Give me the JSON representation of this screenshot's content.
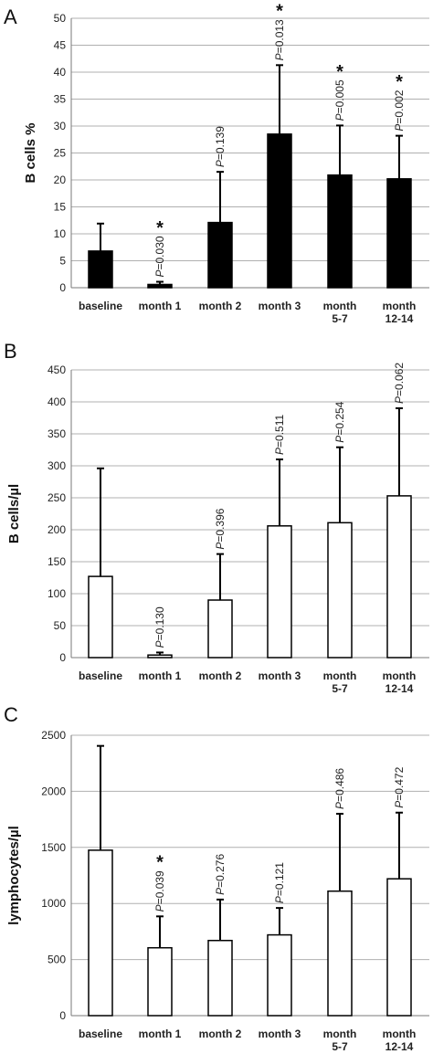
{
  "chart_data": [
    {
      "type": "bar",
      "panel_label": "A",
      "ylabel": "B cells %",
      "ylim": [
        0,
        50
      ],
      "yticks": [
        "0",
        "5",
        "10",
        "15",
        "20",
        "25",
        "30",
        "35",
        "40",
        "45",
        "50"
      ],
      "bar_fill": "#000000",
      "grid": true,
      "categories": [
        "baseline",
        "month 1",
        "month 2",
        "month 3",
        "month 5-7",
        "month 12-14"
      ],
      "category_lines": [
        [
          "baseline"
        ],
        [
          "month 1"
        ],
        [
          "month 2"
        ],
        [
          "month 3"
        ],
        [
          "month",
          "5-7"
        ],
        [
          "month",
          "12-14"
        ]
      ],
      "values": [
        6.8,
        0.6,
        12.1,
        28.5,
        20.9,
        20.2
      ],
      "error_upper": [
        11.9,
        1.1,
        21.5,
        41.3,
        30.1,
        28.2
      ],
      "p_values": [
        "",
        "=0.030",
        "=0.139",
        "=0.013",
        "=0.005",
        "=0.002"
      ],
      "significant": [
        false,
        true,
        false,
        true,
        true,
        true
      ]
    },
    {
      "type": "bar",
      "panel_label": "B",
      "ylabel": "B cells/µl",
      "ylim": [
        0,
        450
      ],
      "yticks": [
        "0",
        "50",
        "100",
        "150",
        "200",
        "250",
        "300",
        "350",
        "400",
        "450"
      ],
      "bar_fill": "#ffffff",
      "grid": true,
      "categories": [
        "baseline",
        "month 1",
        "month 2",
        "month 3",
        "month 5-7",
        "month 12-14"
      ],
      "category_lines": [
        [
          "baseline"
        ],
        [
          "month 1"
        ],
        [
          "month 2"
        ],
        [
          "month 3"
        ],
        [
          "month",
          "5-7"
        ],
        [
          "month",
          "12-14"
        ]
      ],
      "values": [
        127,
        4,
        90,
        206,
        211,
        253
      ],
      "error_upper": [
        296,
        8,
        162,
        310,
        329,
        390
      ],
      "p_values": [
        "",
        "=0.130",
        "=0.396",
        "=0.511",
        "=0.254",
        "=0.062"
      ],
      "significant": [
        false,
        false,
        false,
        false,
        false,
        false
      ]
    },
    {
      "type": "bar",
      "panel_label": "C",
      "ylabel": "lymphocytes/µl",
      "ylim": [
        0,
        2500
      ],
      "yticks": [
        "0",
        "500",
        "1000",
        "1500",
        "2000",
        "2500"
      ],
      "bar_fill": "#ffffff",
      "grid": true,
      "categories": [
        "baseline",
        "month 1",
        "month 2",
        "month 3",
        "month 5-7",
        "month 12-14"
      ],
      "category_lines": [
        [
          "baseline"
        ],
        [
          "month 1"
        ],
        [
          "month 2"
        ],
        [
          "month 3"
        ],
        [
          "month",
          "5-7"
        ],
        [
          "month",
          "12-14"
        ]
      ],
      "values": [
        1475,
        605,
        670,
        720,
        1110,
        1220
      ],
      "error_upper": [
        2405,
        885,
        1035,
        960,
        1800,
        1810
      ],
      "p_values": [
        "",
        "=0.039",
        "=0.276",
        "=0.121",
        "=0.486",
        "=0.472"
      ],
      "significant": [
        false,
        true,
        false,
        false,
        false,
        false
      ]
    }
  ]
}
